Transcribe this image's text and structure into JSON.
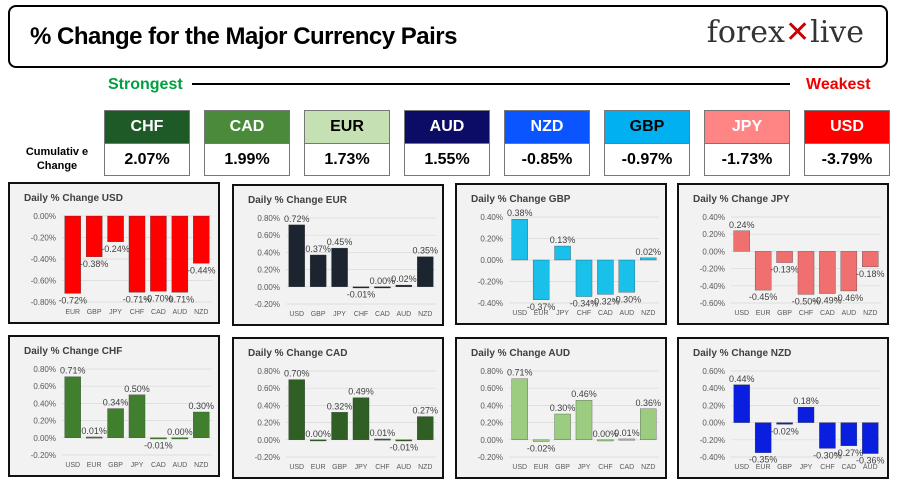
{
  "header": {
    "title": "% Change for the Major Currency Pairs",
    "logo": "forexlive",
    "strongest": "Strongest",
    "weakest": "Weakest",
    "cumulative_label": "Cumulativ e Change"
  },
  "tiles": [
    {
      "ccy": "CHF",
      "value": "2.07%",
      "color": "#1e5a28",
      "text": "#fff"
    },
    {
      "ccy": "CAD",
      "value": "1.99%",
      "color": "#4b8a3a",
      "text": "#fff"
    },
    {
      "ccy": "EUR",
      "value": "1.73%",
      "color": "#c5e0b3",
      "text": "#000"
    },
    {
      "ccy": "AUD",
      "value": "1.55%",
      "color": "#0c0c66",
      "text": "#fff"
    },
    {
      "ccy": "NZD",
      "value": "-0.85%",
      "color": "#0a55ff",
      "text": "#fff"
    },
    {
      "ccy": "GBP",
      "value": "-0.97%",
      "color": "#00b0f0",
      "text": "#000"
    },
    {
      "ccy": "JPY",
      "value": "-1.73%",
      "color": "#ff8585",
      "text": "#fff"
    },
    {
      "ccy": "USD",
      "value": "-3.79%",
      "color": "#ff0000",
      "text": "#fff"
    }
  ],
  "chart_data": [
    {
      "type": "bar",
      "title": "Daily % Change USD",
      "categories": [
        "EUR",
        "GBP",
        "JPY",
        "CHF",
        "CAD",
        "AUD",
        "NZD"
      ],
      "values": [
        -0.72,
        -0.38,
        -0.24,
        -0.71,
        -0.7,
        -0.71,
        -0.44
      ],
      "ylim": [
        -0.8,
        0
      ],
      "color": "#ff0000"
    },
    {
      "type": "bar",
      "title": "Daily % Change EUR",
      "categories": [
        "USD",
        "GBP",
        "JPY",
        "CHF",
        "CAD",
        "AUD",
        "NZD"
      ],
      "values": [
        0.72,
        0.37,
        0.45,
        -0.01,
        0.0,
        0.02,
        0.35
      ],
      "ylim": [
        -0.2,
        0.8
      ],
      "color": "#1c2430"
    },
    {
      "type": "bar",
      "title": "Daily % Change GBP",
      "categories": [
        "USD",
        "EUR",
        "JPY",
        "CHF",
        "CAD",
        "AUD",
        "NZD"
      ],
      "values": [
        0.38,
        -0.37,
        0.13,
        -0.34,
        -0.32,
        -0.3,
        0.02
      ],
      "ylim": [
        -0.4,
        0.4
      ],
      "color": "#19c0ea"
    },
    {
      "type": "bar",
      "title": "Daily % Change JPY",
      "categories": [
        "USD",
        "EUR",
        "GBP",
        "CHF",
        "CAD",
        "AUD",
        "NZD"
      ],
      "values": [
        0.24,
        -0.45,
        -0.13,
        -0.5,
        -0.49,
        -0.46,
        -0.18
      ],
      "ylim": [
        -0.6,
        0.4
      ],
      "color": "#f07070"
    },
    {
      "type": "bar",
      "title": "Daily % Change CHF",
      "categories": [
        "USD",
        "EUR",
        "GBP",
        "JPY",
        "CAD",
        "AUD",
        "NZD"
      ],
      "values": [
        0.71,
        0.01,
        0.34,
        0.5,
        -0.01,
        0.0,
        0.3
      ],
      "ylim": [
        -0.2,
        0.8
      ],
      "color": "#3f7f2e"
    },
    {
      "type": "bar",
      "title": "Daily % Change CAD",
      "categories": [
        "USD",
        "EUR",
        "GBP",
        "JPY",
        "CHF",
        "AUD",
        "NZD"
      ],
      "values": [
        0.7,
        0.0,
        0.32,
        0.49,
        0.01,
        -0.01,
        0.27
      ],
      "ylim": [
        -0.2,
        0.8
      ],
      "color": "#2f5f22"
    },
    {
      "type": "bar",
      "title": "Daily % Change AUD",
      "categories": [
        "USD",
        "EUR",
        "GBP",
        "JPY",
        "CHF",
        "CAD",
        "NZD"
      ],
      "values": [
        0.71,
        -0.02,
        0.3,
        0.46,
        0.0,
        0.01,
        0.36
      ],
      "ylim": [
        -0.2,
        0.8
      ],
      "color": "#9ccc80"
    },
    {
      "type": "bar",
      "title": "Daily % Change NZD",
      "categories": [
        "USD",
        "EUR",
        "GBP",
        "JPY",
        "CHF",
        "CAD",
        "AUD"
      ],
      "values": [
        0.44,
        -0.35,
        -0.02,
        0.18,
        -0.3,
        -0.27,
        -0.36
      ],
      "ylim": [
        -0.4,
        0.6
      ],
      "color": "#0a1ee0"
    }
  ]
}
